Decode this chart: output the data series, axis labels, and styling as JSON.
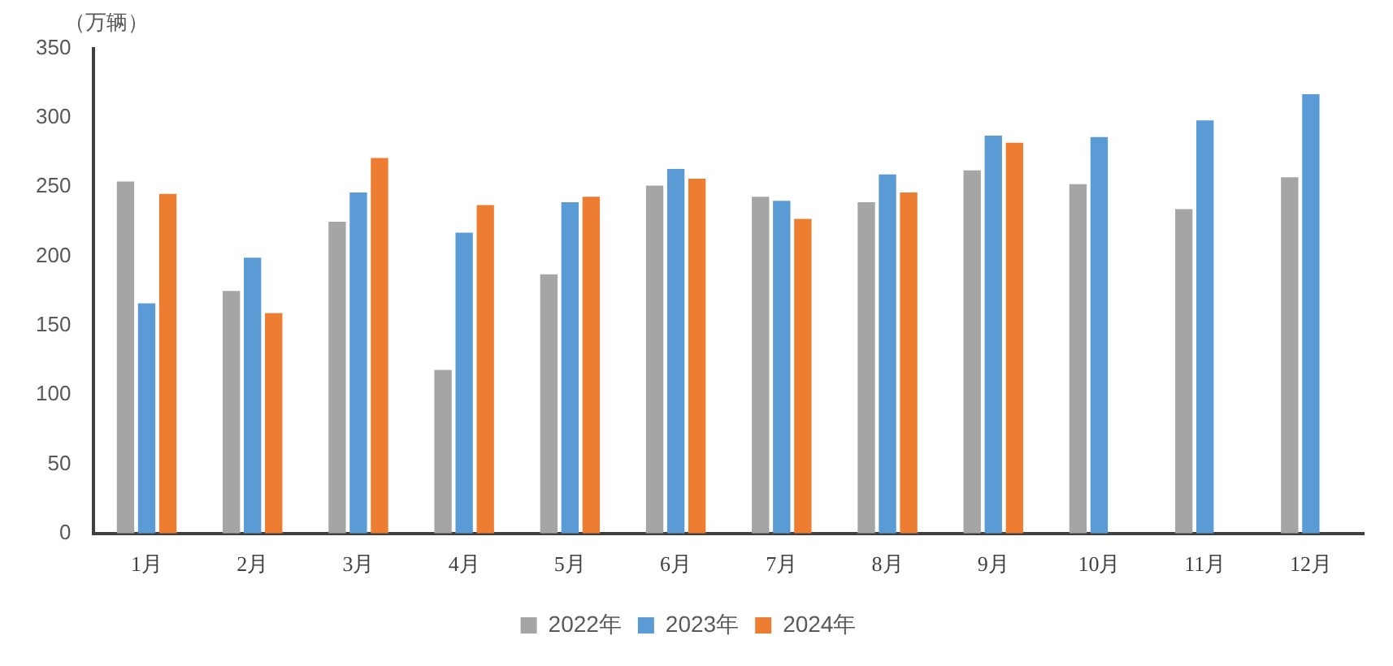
{
  "chart_data": {
    "type": "bar",
    "ylabel": "（万辆）",
    "categories": [
      "1月",
      "2月",
      "3月",
      "4月",
      "5月",
      "6月",
      "7月",
      "8月",
      "9月",
      "10月",
      "11月",
      "12月"
    ],
    "series": [
      {
        "name": "2022年",
        "color": "#a5a5a5",
        "values": [
          254,
          175,
          225,
          118,
          187,
          251,
          243,
          239,
          262,
          252,
          234,
          257
        ]
      },
      {
        "name": "2023年",
        "color": "#5b9bd5",
        "values": [
          166,
          199,
          246,
          217,
          239,
          263,
          240,
          259,
          287,
          286,
          298,
          317
        ]
      },
      {
        "name": "2024年",
        "color": "#ed7d31",
        "values": [
          245,
          159,
          271,
          237,
          243,
          256,
          227,
          246,
          282,
          null,
          null,
          null
        ]
      }
    ],
    "ylim": [
      0,
      350
    ],
    "yticks": [
      0,
      50,
      100,
      150,
      200,
      250,
      300,
      350
    ],
    "grid": false,
    "legend": "bottom"
  }
}
